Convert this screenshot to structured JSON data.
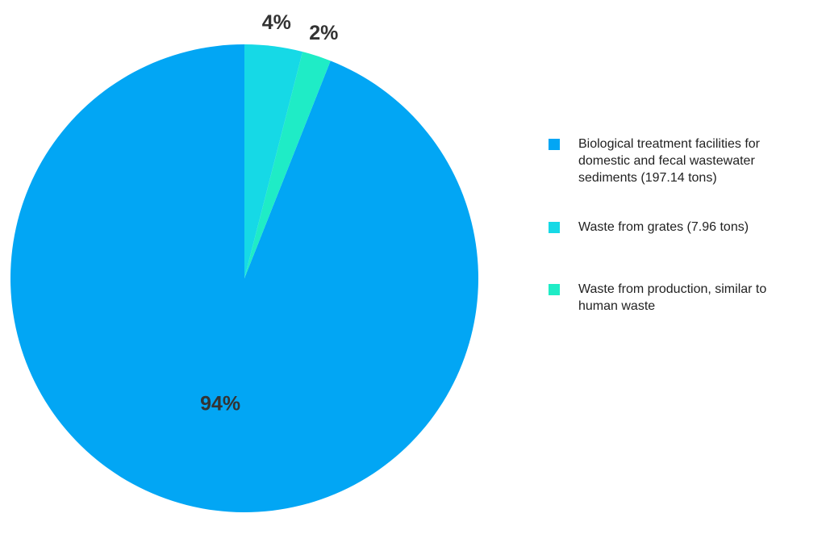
{
  "chart_data": {
    "type": "pie",
    "series": [
      {
        "name": "Biological treatment facilities for domestic and fecal wastewater sediments (197.14 tons)",
        "color": "#02a6f4",
        "values": [
          94
        ],
        "value_labels": [
          "94%"
        ]
      },
      {
        "name": "Waste from grates (7.96 tons)",
        "color": "#16d9e6",
        "values": [
          4
        ],
        "value_labels": [
          "4%"
        ]
      },
      {
        "name": "Waste from production, similar to human waste",
        "color": "#1fecc6",
        "values": [
          2
        ],
        "value_labels": [
          "2%"
        ]
      }
    ]
  }
}
